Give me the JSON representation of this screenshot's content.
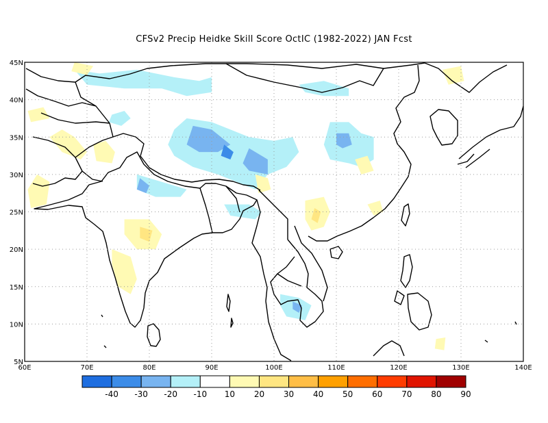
{
  "title": "CFSv2 Precip Heidke Skill Score OctIC (1982-2022) JAN Fcst",
  "map": {
    "lon_range": [
      60,
      140
    ],
    "lat_range": [
      5,
      45
    ],
    "lon_ticks": [
      {
        "value": 60,
        "label": "60E"
      },
      {
        "value": 70,
        "label": "70E"
      },
      {
        "value": 80,
        "label": "80E"
      },
      {
        "value": 90,
        "label": "90E"
      },
      {
        "value": 100,
        "label": "100E"
      },
      {
        "value": 110,
        "label": "110E"
      },
      {
        "value": 120,
        "label": "120E"
      },
      {
        "value": 130,
        "label": "130E"
      },
      {
        "value": 140,
        "label": "140E"
      }
    ],
    "lat_ticks": [
      {
        "value": 5,
        "label": "5N"
      },
      {
        "value": 10,
        "label": "10N"
      },
      {
        "value": 15,
        "label": "15N"
      },
      {
        "value": 20,
        "label": "20N"
      },
      {
        "value": 25,
        "label": "25N"
      },
      {
        "value": 30,
        "label": "30N"
      },
      {
        "value": 35,
        "label": "35N"
      },
      {
        "value": 40,
        "label": "40N"
      },
      {
        "value": 45,
        "label": "45N"
      }
    ],
    "grid": "dotted"
  },
  "colorbar": {
    "colors": [
      "#1e6ee0",
      "#3c8ce8",
      "#78b4f0",
      "#b4f0f8",
      "#ffffff",
      "#fffab4",
      "#ffe682",
      "#ffbe46",
      "#ffa000",
      "#ff6e00",
      "#ff3c00",
      "#e01400",
      "#a00000"
    ],
    "labels": [
      "-40",
      "-30",
      "-20",
      "-10",
      "10",
      "20",
      "30",
      "40",
      "50",
      "60",
      "70",
      "80",
      "90"
    ]
  },
  "skill_regions": [
    {
      "level": -10,
      "color": "#b4f0f8",
      "points": [
        [
          68,
          44
        ],
        [
          72,
          43.5
        ],
        [
          78,
          44
        ],
        [
          84,
          43
        ],
        [
          88,
          42.5
        ],
        [
          90,
          43
        ],
        [
          90,
          41
        ],
        [
          86,
          40.5
        ],
        [
          82,
          41.5
        ],
        [
          76,
          41.5
        ],
        [
          70,
          42
        ]
      ]
    },
    {
      "level": -10,
      "color": "#b4f0f8",
      "points": [
        [
          86,
          37.5
        ],
        [
          90,
          37
        ],
        [
          93,
          36
        ],
        [
          96,
          35
        ],
        [
          100,
          34.5
        ],
        [
          103,
          35
        ],
        [
          104,
          33
        ],
        [
          102,
          31
        ],
        [
          99,
          30
        ],
        [
          97,
          28
        ],
        [
          94,
          29
        ],
        [
          91,
          30
        ],
        [
          87,
          31
        ],
        [
          84,
          32.5
        ],
        [
          83,
          34
        ],
        [
          84,
          36
        ]
      ]
    },
    {
      "level": -20,
      "color": "#78b4f0",
      "points": [
        [
          87,
          36.5
        ],
        [
          90,
          36
        ],
        [
          93,
          34
        ],
        [
          91,
          33
        ],
        [
          88,
          33
        ],
        [
          86,
          34
        ]
      ]
    },
    {
      "level": -20,
      "color": "#78b4f0",
      "points": [
        [
          96,
          33.5
        ],
        [
          99,
          32
        ],
        [
          99,
          30
        ],
        [
          96,
          30.5
        ],
        [
          95,
          31.5
        ]
      ]
    },
    {
      "level": -30,
      "color": "#3c8ce8",
      "points": [
        [
          92,
          34
        ],
        [
          93.5,
          33
        ],
        [
          93,
          32
        ],
        [
          91.5,
          32.5
        ]
      ]
    },
    {
      "level": -10,
      "color": "#b4f0f8",
      "points": [
        [
          109,
          37
        ],
        [
          112,
          37
        ],
        [
          114,
          35.5
        ],
        [
          116,
          35
        ],
        [
          116,
          32
        ],
        [
          114,
          31
        ],
        [
          112,
          31.5
        ],
        [
          109,
          32
        ],
        [
          108,
          34
        ]
      ]
    },
    {
      "level": -20,
      "color": "#78b4f0",
      "points": [
        [
          110,
          35.5
        ],
        [
          112,
          35.5
        ],
        [
          112.5,
          34
        ],
        [
          111,
          33.5
        ],
        [
          110,
          34
        ]
      ]
    },
    {
      "level": -10,
      "color": "#b4f0f8",
      "points": [
        [
          104,
          42
        ],
        [
          108,
          42.5
        ],
        [
          112,
          41.5
        ],
        [
          112,
          40.5
        ],
        [
          108,
          40.5
        ],
        [
          105,
          41
        ]
      ]
    },
    {
      "level": -10,
      "color": "#b4f0f8",
      "points": [
        [
          78,
          30
        ],
        [
          82,
          29
        ],
        [
          86,
          28
        ],
        [
          85,
          27
        ],
        [
          81,
          27
        ],
        [
          78,
          28
        ]
      ]
    },
    {
      "level": -20,
      "color": "#78b4f0",
      "points": [
        [
          78.5,
          29.5
        ],
        [
          80,
          28.5
        ],
        [
          79.5,
          27.5
        ],
        [
          78,
          28
        ]
      ]
    },
    {
      "level": -10,
      "color": "#b4f0f8",
      "points": [
        [
          74,
          38
        ],
        [
          76,
          38.5
        ],
        [
          77,
          37.5
        ],
        [
          75.5,
          36.5
        ],
        [
          73.5,
          37
        ]
      ]
    },
    {
      "level": -10,
      "color": "#b4f0f8",
      "points": [
        [
          92,
          26
        ],
        [
          96,
          26
        ],
        [
          98,
          25
        ],
        [
          97,
          24
        ],
        [
          93,
          24.5
        ]
      ]
    },
    {
      "level": -10,
      "color": "#b4f0f8",
      "points": [
        [
          101,
          14
        ],
        [
          104,
          13.5
        ],
        [
          106,
          12.5
        ],
        [
          105,
          10.5
        ],
        [
          102,
          11
        ],
        [
          101,
          12.5
        ]
      ]
    },
    {
      "level": -20,
      "color": "#78b4f0",
      "points": [
        [
          103,
          13
        ],
        [
          104.5,
          12.5
        ],
        [
          104,
          11.5
        ],
        [
          103,
          12
        ]
      ]
    },
    {
      "level": 10,
      "color": "#fffab4",
      "points": [
        [
          64,
          35
        ],
        [
          66,
          36
        ],
        [
          68,
          35
        ],
        [
          70,
          33
        ],
        [
          69,
          32
        ],
        [
          66,
          33
        ]
      ]
    },
    {
      "level": 10,
      "color": "#fffab4",
      "points": [
        [
          71,
          34
        ],
        [
          73,
          34.5
        ],
        [
          74.5,
          33
        ],
        [
          74,
          31.5
        ],
        [
          71.5,
          31.8
        ]
      ]
    },
    {
      "level": 10,
      "color": "#fffab4",
      "points": [
        [
          60.5,
          38.5
        ],
        [
          63,
          39
        ],
        [
          64,
          37.5
        ],
        [
          61,
          37
        ]
      ]
    },
    {
      "level": 10,
      "color": "#fffab4",
      "points": [
        [
          62,
          30
        ],
        [
          64,
          29
        ],
        [
          63.5,
          26
        ],
        [
          61,
          25.5
        ],
        [
          60.5,
          28
        ]
      ]
    },
    {
      "level": 10,
      "color": "#fffab4",
      "points": [
        [
          76,
          24
        ],
        [
          80,
          24
        ],
        [
          82,
          22
        ],
        [
          81,
          20
        ],
        [
          78,
          20
        ],
        [
          76,
          22
        ]
      ]
    },
    {
      "level": 20,
      "color": "#ffe682",
      "points": [
        [
          78.5,
          23
        ],
        [
          80.5,
          22.5
        ],
        [
          80,
          21
        ],
        [
          78.5,
          21.5
        ]
      ]
    },
    {
      "level": 10,
      "color": "#fffab4",
      "points": [
        [
          74,
          20
        ],
        [
          77,
          19
        ],
        [
          78,
          16
        ],
        [
          77,
          14
        ],
        [
          75,
          15
        ],
        [
          74,
          18
        ]
      ]
    },
    {
      "level": 10,
      "color": "#fffab4",
      "points": [
        [
          97,
          30
        ],
        [
          99,
          29.5
        ],
        [
          99.5,
          28
        ],
        [
          97.5,
          27.5
        ]
      ]
    },
    {
      "level": 10,
      "color": "#fffab4",
      "points": [
        [
          105,
          26.5
        ],
        [
          108,
          27
        ],
        [
          109,
          25
        ],
        [
          108,
          23
        ],
        [
          106,
          22.5
        ],
        [
          105,
          24
        ]
      ]
    },
    {
      "level": 20,
      "color": "#ffe682",
      "points": [
        [
          106.5,
          25.5
        ],
        [
          107.5,
          25
        ],
        [
          107,
          23.5
        ],
        [
          106,
          24
        ]
      ]
    },
    {
      "level": 10,
      "color": "#fffab4",
      "points": [
        [
          115,
          26
        ],
        [
          117,
          26.5
        ],
        [
          117.5,
          25
        ],
        [
          116,
          24.5
        ]
      ]
    },
    {
      "level": 10,
      "color": "#fffab4",
      "points": [
        [
          127,
          44
        ],
        [
          130,
          44.5
        ],
        [
          130.5,
          42.5
        ],
        [
          128,
          42
        ]
      ]
    },
    {
      "level": 10,
      "color": "#fffab4",
      "points": [
        [
          113,
          32
        ],
        [
          115,
          32.5
        ],
        [
          116,
          30.5
        ],
        [
          114,
          30
        ]
      ]
    },
    {
      "level": 10,
      "color": "#fffab4",
      "points": [
        [
          126,
          8
        ],
        [
          127.5,
          8.2
        ],
        [
          127.3,
          6.5
        ],
        [
          125.8,
          6.7
        ]
      ]
    },
    {
      "level": 10,
      "color": "#fffab4",
      "points": [
        [
          68,
          45
        ],
        [
          71,
          44.5
        ],
        [
          70,
          43.3
        ],
        [
          67.5,
          43.8
        ]
      ]
    }
  ]
}
